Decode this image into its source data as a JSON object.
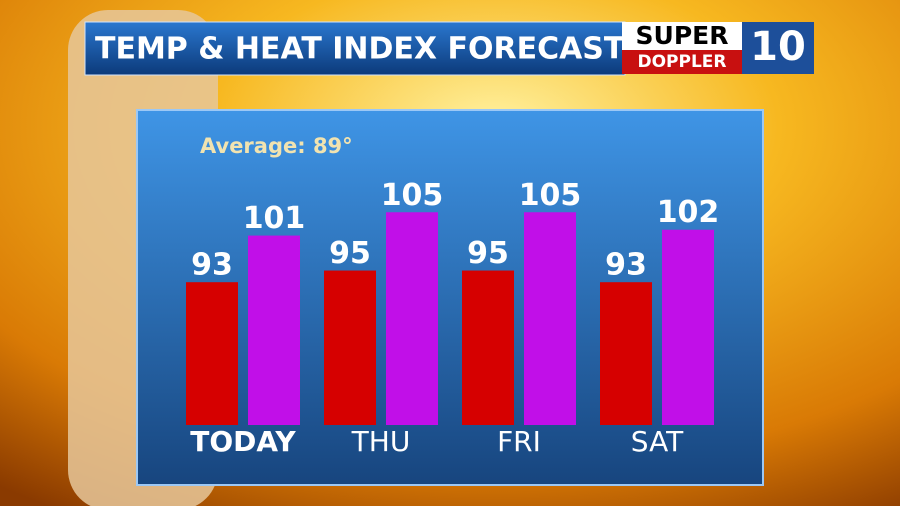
{
  "chart_data": {
    "type": "bar",
    "title": "TEMP & HEAT INDEX FORECAST",
    "logo": {
      "top": "SUPER",
      "bottom": "DOPPLER",
      "number": "10"
    },
    "annotation": "Average: 89°",
    "categories": [
      "TODAY",
      "THU",
      "FRI",
      "SAT"
    ],
    "series": [
      {
        "color": "#d60000",
        "values": [
          93,
          95,
          95,
          93
        ]
      },
      {
        "color": "#c10fe8",
        "values": [
          101,
          105,
          105,
          102
        ]
      }
    ],
    "ylim": [
      68.5,
      121
    ]
  }
}
